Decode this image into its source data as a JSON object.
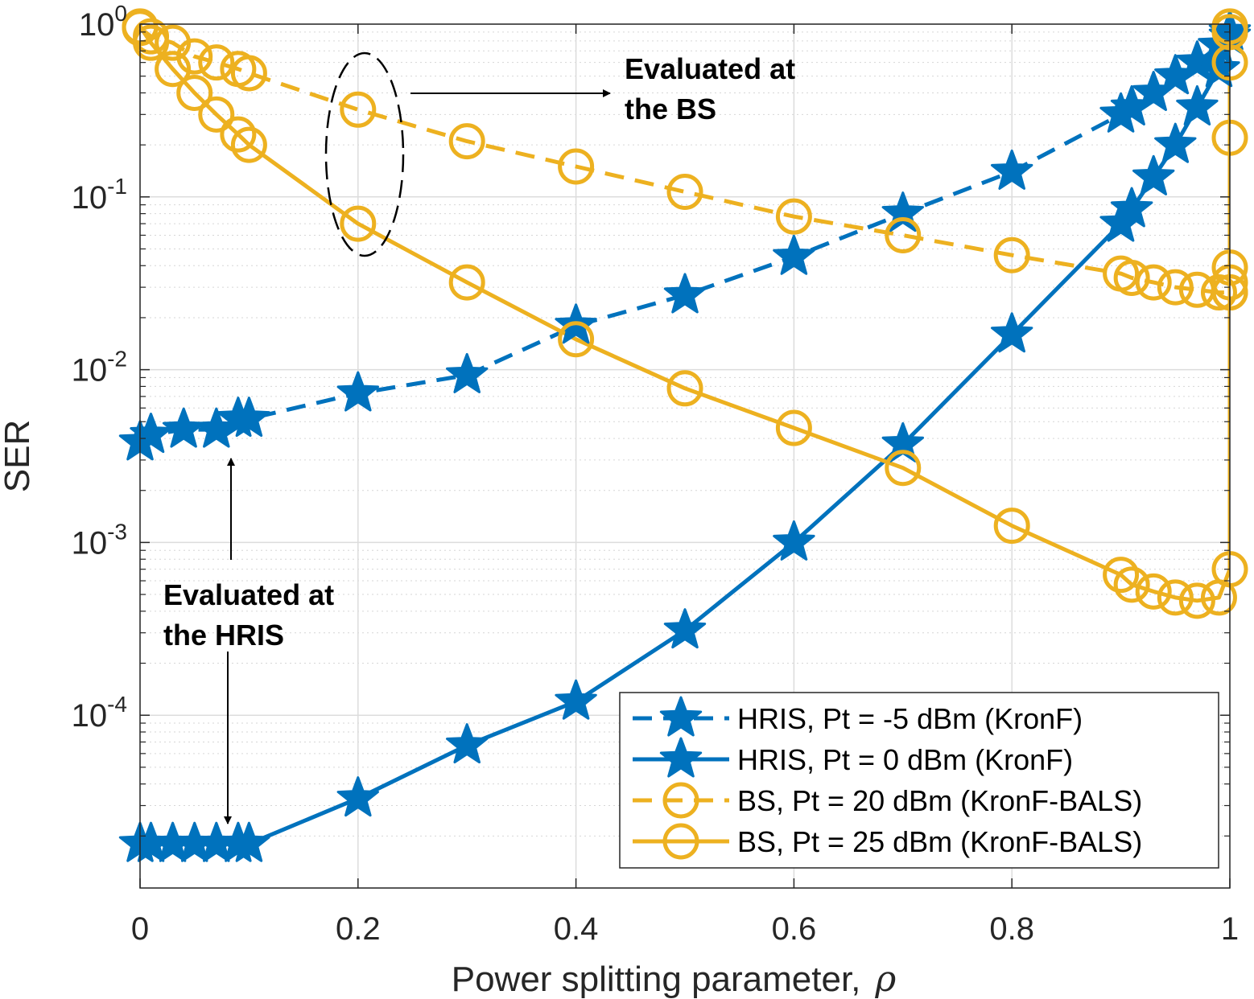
{
  "chart_data": {
    "type": "line",
    "xlabel": "Power splitting parameter,",
    "xlabel_symbol": "ρ",
    "ylabel": "SER",
    "xlim": [
      0,
      1
    ],
    "ylim": [
      1e-05,
      1
    ],
    "yscale": "log",
    "grid": true,
    "minor_grid": true,
    "legend_position": "bottom-right",
    "x_ticks": [
      "0",
      "0.2",
      "0.4",
      "0.6",
      "0.8",
      "1"
    ],
    "y_ticks": [
      {
        "base": "10",
        "exp": "0",
        "value": 1
      },
      {
        "base": "10",
        "exp": "-1",
        "value": 0.1
      },
      {
        "base": "10",
        "exp": "-2",
        "value": 0.01
      },
      {
        "base": "10",
        "exp": "-3",
        "value": 0.001
      },
      {
        "base": "10",
        "exp": "-4",
        "value": 0.0001
      }
    ],
    "series": [
      {
        "name": "HRIS, Pt = -5 dBm (KronF)",
        "color": "#0072BD",
        "line": "dashed",
        "marker": "star",
        "x": [
          0,
          0.01,
          0.04,
          0.07,
          0.09,
          0.1,
          0.2,
          0.3,
          0.4,
          0.5,
          0.6,
          0.7,
          0.8,
          0.9,
          0.91,
          0.93,
          0.95,
          0.97,
          0.99,
          1.0
        ],
        "y": [
          0.0038,
          0.0042,
          0.0045,
          0.0045,
          0.0052,
          0.0052,
          0.0073,
          0.0093,
          0.018,
          0.027,
          0.045,
          0.08,
          0.14,
          0.3,
          0.33,
          0.4,
          0.5,
          0.6,
          0.75,
          0.9
        ]
      },
      {
        "name": "HRIS, Pt = 0 dBm (KronF)",
        "color": "#0072BD",
        "line": "solid",
        "marker": "star",
        "x": [
          0,
          0.01,
          0.03,
          0.05,
          0.07,
          0.09,
          0.1,
          0.2,
          0.3,
          0.4,
          0.5,
          0.6,
          0.7,
          0.8,
          0.9,
          0.91,
          0.93,
          0.95,
          0.97,
          0.99,
          1.0
        ],
        "y": [
          1.8e-05,
          1.8e-05,
          1.8e-05,
          1.8e-05,
          1.8e-05,
          1.8e-05,
          1.8e-05,
          3.3e-05,
          6.7e-05,
          0.00012,
          0.00031,
          0.001,
          0.0037,
          0.016,
          0.07,
          0.085,
          0.13,
          0.2,
          0.33,
          0.55,
          0.85
        ]
      },
      {
        "name": "BS, Pt = 20 dBm (KronF-BALS)",
        "color": "#EDB120",
        "line": "dashed",
        "marker": "circle",
        "x": [
          0,
          0.01,
          0.03,
          0.05,
          0.07,
          0.09,
          0.1,
          0.2,
          0.3,
          0.4,
          0.5,
          0.6,
          0.7,
          0.8,
          0.9,
          0.91,
          0.93,
          0.95,
          0.97,
          0.99,
          1.0,
          1.0,
          1.0,
          1.0
        ],
        "y": [
          0.95,
          0.85,
          0.78,
          0.65,
          0.6,
          0.55,
          0.52,
          0.32,
          0.21,
          0.15,
          0.107,
          0.077,
          0.06,
          0.046,
          0.036,
          0.034,
          0.032,
          0.03,
          0.029,
          0.028,
          0.028,
          0.032,
          0.039,
          0.028
        ]
      },
      {
        "name": "BS, Pt = 25 dBm (KronF-BALS)",
        "color": "#EDB120",
        "line": "solid",
        "marker": "circle",
        "x": [
          0,
          0.01,
          0.03,
          0.05,
          0.07,
          0.09,
          0.1,
          0.2,
          0.3,
          0.4,
          0.5,
          0.6,
          0.7,
          0.8,
          0.9,
          0.91,
          0.93,
          0.95,
          0.97,
          0.99,
          1.0,
          1.0,
          1.0,
          1.0,
          1.0
        ],
        "y": [
          0.97,
          0.78,
          0.55,
          0.4,
          0.3,
          0.23,
          0.2,
          0.07,
          0.032,
          0.015,
          0.0078,
          0.0046,
          0.0027,
          0.00125,
          0.00065,
          0.00057,
          0.00052,
          0.00048,
          0.00046,
          0.00048,
          0.0007,
          0.22,
          0.6,
          0.9,
          0.97
        ]
      }
    ],
    "annotations": [
      {
        "lines": [
          "Evaluated at",
          "the BS"
        ]
      },
      {
        "lines": [
          "Evaluated at",
          "the HRIS"
        ]
      }
    ]
  }
}
